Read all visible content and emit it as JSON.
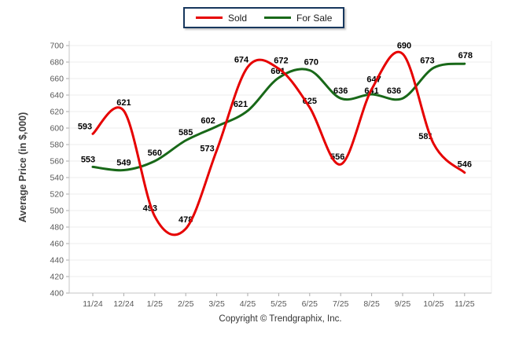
{
  "legend": {
    "items": [
      {
        "label": "Sold",
        "color": "#e60000"
      },
      {
        "label": "For Sale",
        "color": "#186818"
      }
    ]
  },
  "chart_data": {
    "type": "line",
    "title": "",
    "xlabel": "",
    "ylabel": "Average Price (in $,000)",
    "ylim": [
      400,
      700
    ],
    "ytick_step": 20,
    "grid": true,
    "legend_position": "top-center",
    "categories": [
      "11/24",
      "12/24",
      "1/25",
      "2/25",
      "3/25",
      "4/25",
      "5/25",
      "6/25",
      "7/25",
      "8/25",
      "9/25",
      "10/25",
      "11/25"
    ],
    "series": [
      {
        "name": "Sold",
        "color": "#e60000",
        "values": [
          593,
          621,
          493,
          478,
          573,
          674,
          672,
          625,
          556,
          647,
          690,
          581,
          546
        ]
      },
      {
        "name": "For Sale",
        "color": "#186818",
        "values": [
          553,
          549,
          560,
          585,
          602,
          621,
          661,
          670,
          636,
          641,
          636,
          673,
          678
        ]
      }
    ]
  },
  "footer": {
    "text": "Copyright © Trendgraphix, Inc."
  },
  "colors": {
    "grid": "#ededed",
    "axis": "#c6c6c6",
    "tick": "#aaaaaa",
    "tick_label": "#595959",
    "data_label": "#000000",
    "legend_border": "#17375d"
  }
}
